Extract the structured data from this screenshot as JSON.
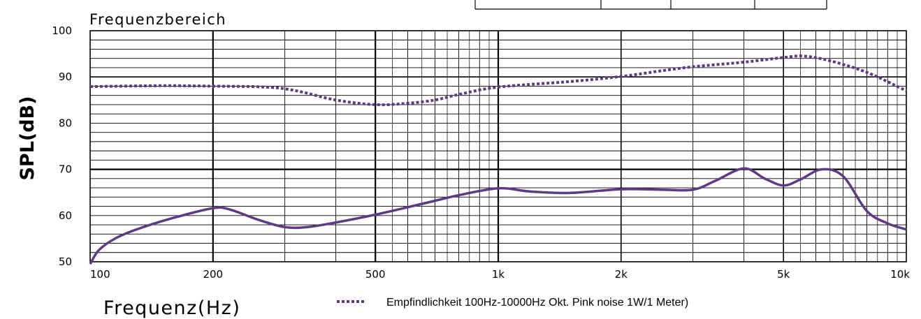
{
  "chart_data": {
    "type": "line",
    "title": "Frequenzbereich",
    "xlabel": "Frequenz(Hz)",
    "ylabel": "SPL(dB)",
    "x_scale": "log",
    "xlim": [
      100,
      10000
    ],
    "ylim": [
      50,
      100
    ],
    "x_ticks": [
      {
        "value": 100,
        "label": "100"
      },
      {
        "value": 200,
        "label": "200"
      },
      {
        "value": 500,
        "label": "500"
      },
      {
        "value": 1000,
        "label": "1k"
      },
      {
        "value": 2000,
        "label": "2k"
      },
      {
        "value": 5000,
        "label": "5k"
      },
      {
        "value": 10000,
        "label": "10k"
      }
    ],
    "y_ticks": [
      50,
      60,
      70,
      80,
      90,
      100
    ],
    "grid": true,
    "series": [
      {
        "name": "Empfindlichkeit 100Hz-10000Hz Okt. Pink noise 1W/1 Meter)",
        "style": "dotted",
        "color": "#5e3a86",
        "x": [
          100,
          150,
          200,
          270,
          320,
          400,
          500,
          600,
          700,
          800,
          1000,
          1500,
          2000,
          2500,
          3000,
          4000,
          5000,
          5600,
          6500,
          8000,
          10000
        ],
        "y": [
          87.9,
          88.1,
          88,
          87.8,
          87,
          85,
          84,
          84.3,
          85,
          86.2,
          87.8,
          89,
          90.1,
          91.3,
          92.2,
          93.2,
          94.2,
          94.5,
          93.5,
          91,
          87
        ]
      },
      {
        "name": "",
        "style": "solid",
        "color": "#5e3a86",
        "x": [
          100,
          105,
          115,
          130,
          160,
          200,
          220,
          260,
          300,
          340,
          400,
          500,
          600,
          700,
          800,
          1000,
          1200,
          1500,
          2000,
          2500,
          3000,
          3400,
          4000,
          4500,
          5000,
          5500,
          6200,
          7000,
          8000,
          9000,
          10000
        ],
        "y": [
          49.5,
          52.5,
          55,
          57,
          59.5,
          61.6,
          61.3,
          59,
          57.5,
          57.5,
          58.5,
          60.2,
          61.8,
          63.2,
          64.4,
          65.9,
          65.2,
          64.9,
          65.7,
          65.6,
          65.6,
          67.5,
          70.2,
          68,
          66.5,
          67.8,
          70,
          68.5,
          61,
          58.3,
          57
        ]
      }
    ]
  },
  "legend": {
    "entries": [
      {
        "label": "Empfindlichkeit 100Hz-10000Hz Okt. Pink noise 1W/1 Meter)",
        "style": "dotted",
        "color": "#5e3a86"
      }
    ]
  }
}
